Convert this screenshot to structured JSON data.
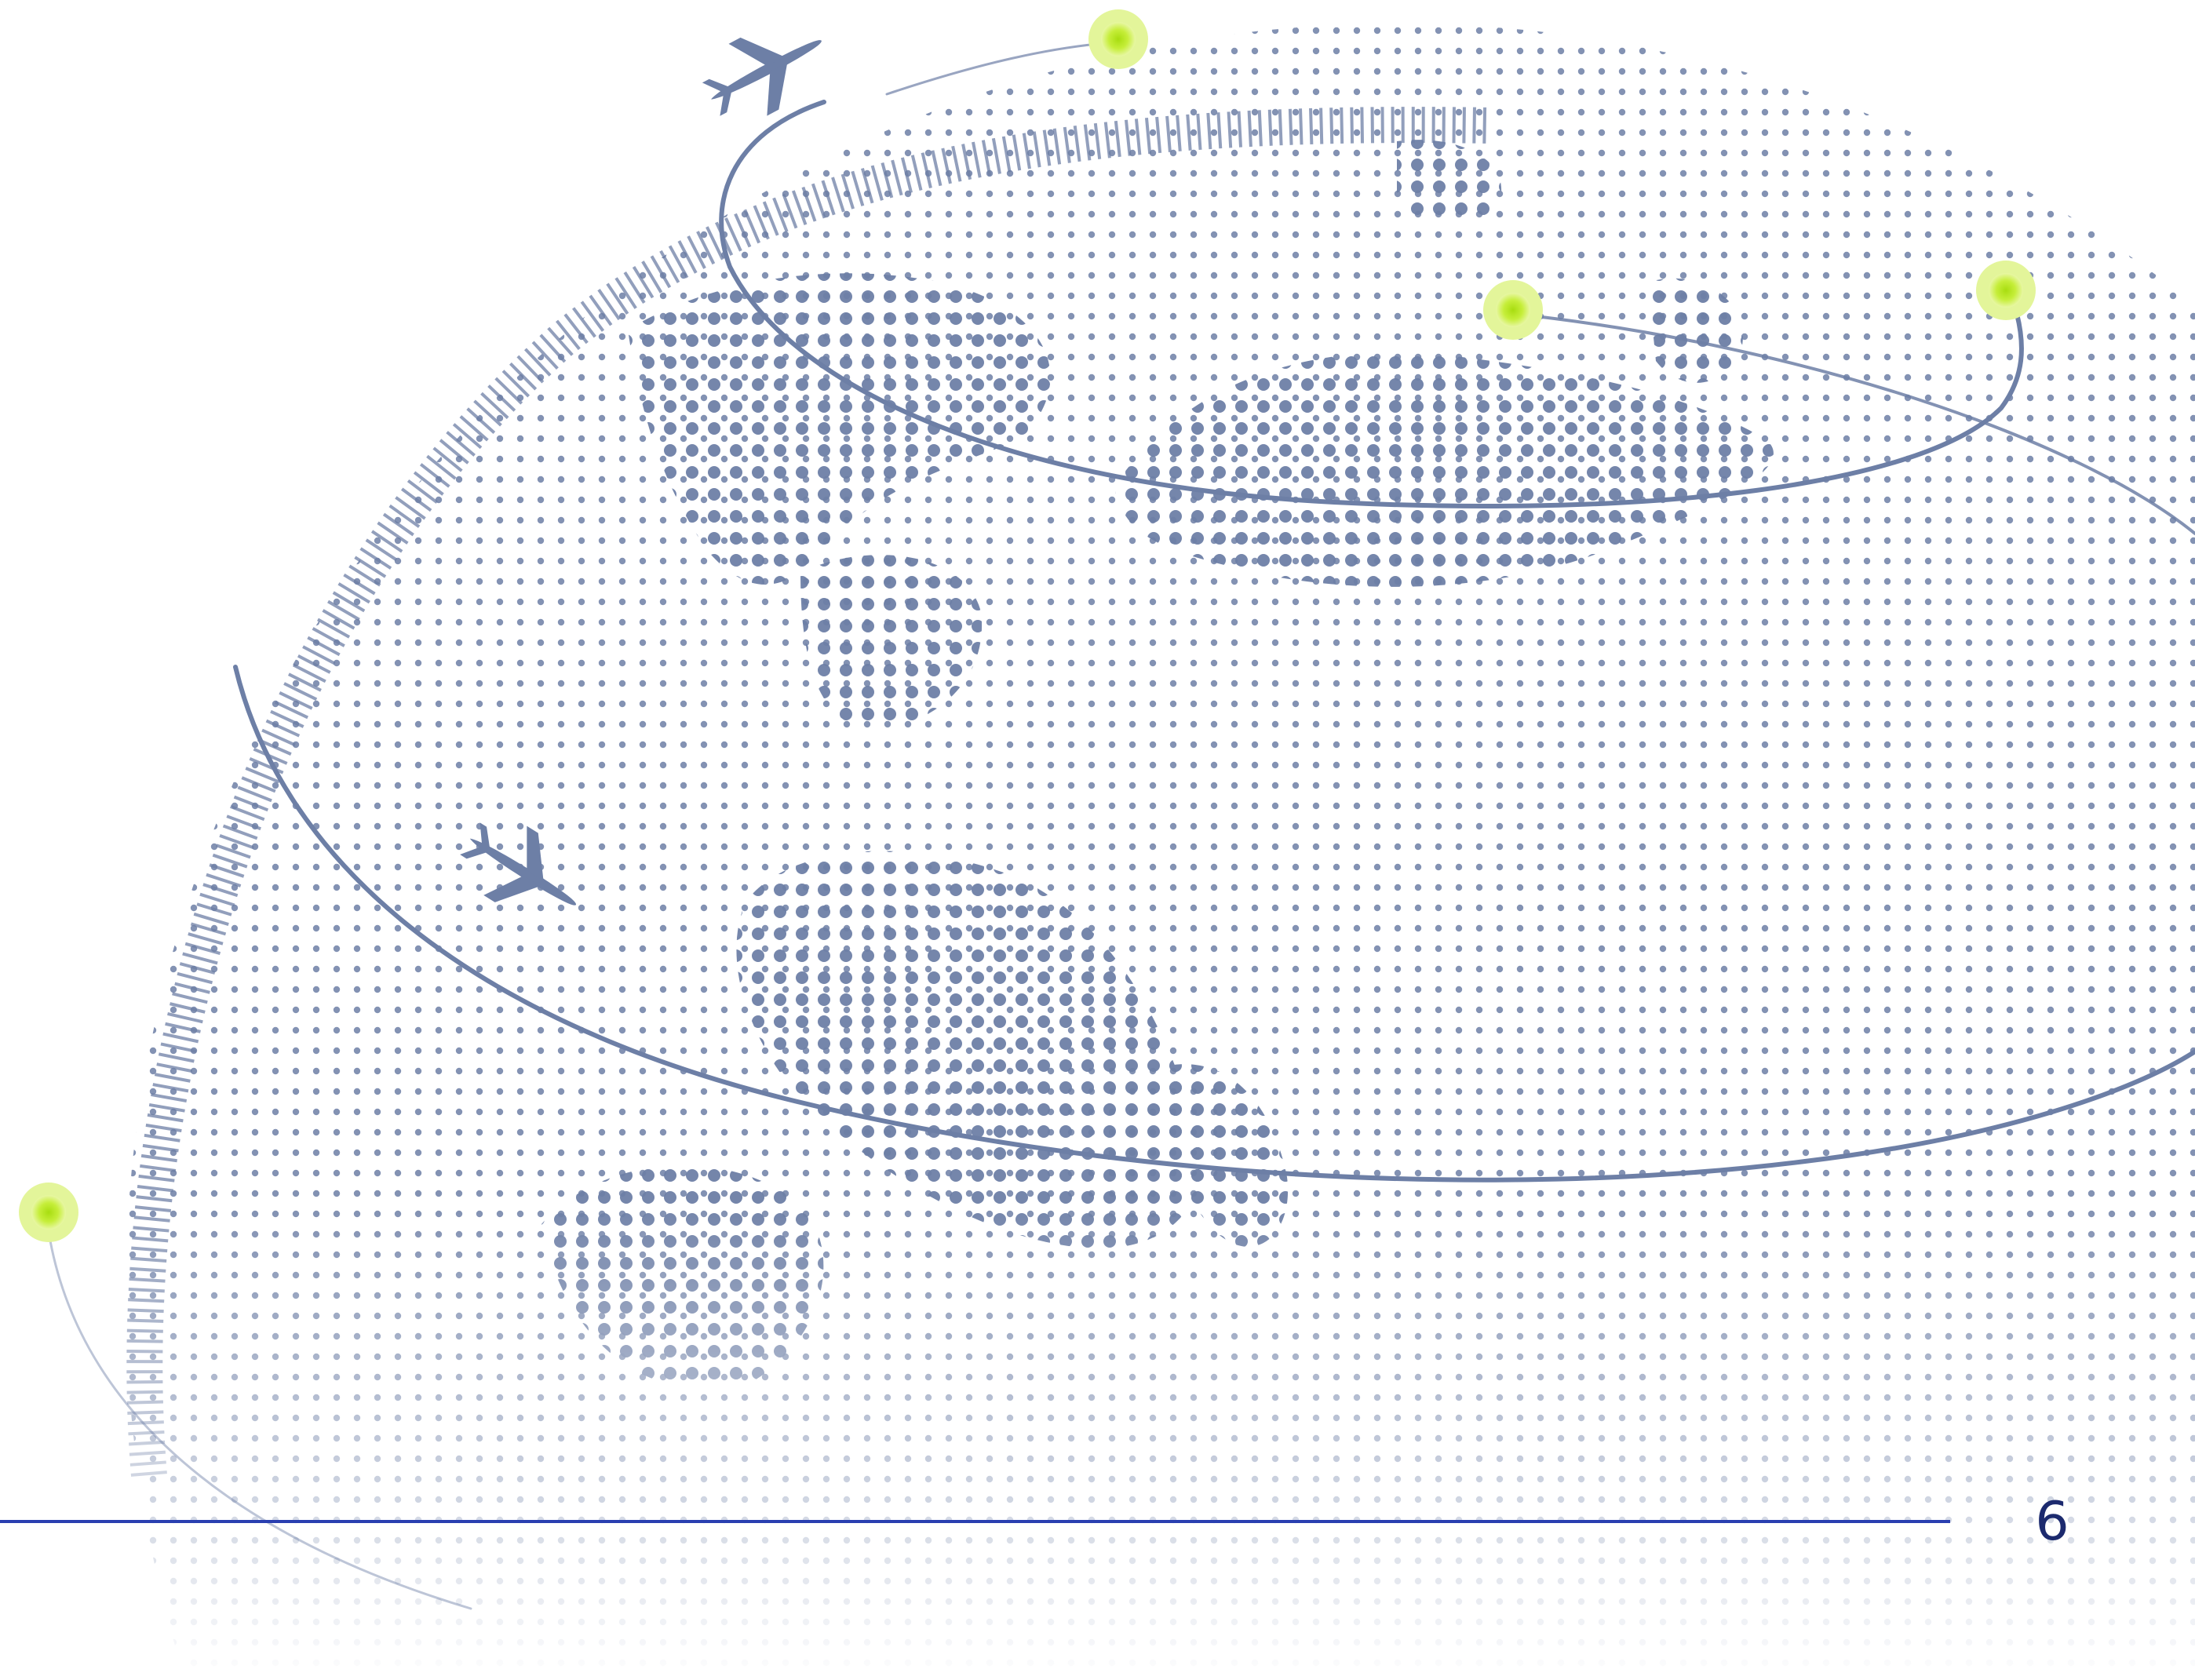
{
  "slide": {
    "page_number": "6"
  },
  "graphics": {
    "globe": "dotted-world-globe",
    "planes": [
      "airplane-icon",
      "airplane-icon"
    ],
    "markers": [
      "glowing-dot",
      "glowing-dot",
      "glowing-dot",
      "glowing-dot"
    ]
  },
  "colors": {
    "dot": "#6d7fa6",
    "orbit": "#6d7fa6",
    "marker_outer": "#dff27a",
    "marker_inner": "#b4e61e",
    "footer_rule": "#2a3fb0",
    "page_number": "#1c2a6e",
    "background": "#ffffff"
  }
}
